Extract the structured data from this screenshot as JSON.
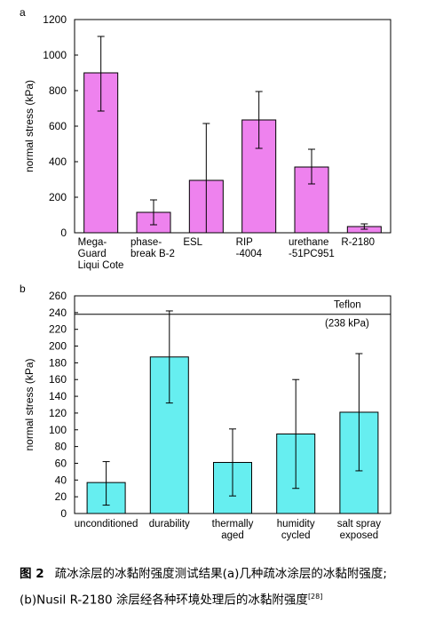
{
  "chart_data": [
    {
      "type": "bar",
      "panel_label": "a",
      "ylabel": "normal stress (kPa)",
      "ylim": [
        0,
        1200
      ],
      "yticks": [
        0,
        200,
        400,
        600,
        800,
        1000,
        1200
      ],
      "bar_color": "#ee82ee",
      "categories": [
        [
          "Mega-",
          "Guard",
          "Liqui Cote"
        ],
        [
          "phase-",
          "break B-2"
        ],
        [
          "ESL"
        ],
        [
          "RIP",
          "-4004"
        ],
        [
          "urethane",
          "-51PC951"
        ],
        [
          "R-2180"
        ]
      ],
      "values": [
        900,
        115,
        295,
        635,
        370,
        35
      ],
      "error_low": [
        685,
        45,
        -30,
        475,
        275,
        20
      ],
      "error_high": [
        1105,
        185,
        615,
        795,
        470,
        50
      ],
      "grid": false
    },
    {
      "type": "bar",
      "panel_label": "b",
      "ylabel": "normal stress (kPa)",
      "ylim": [
        0,
        260
      ],
      "yticks": [
        0,
        20,
        40,
        60,
        80,
        100,
        120,
        140,
        160,
        180,
        200,
        220,
        240,
        260
      ],
      "bar_color": "#66eef0",
      "categories": [
        [
          "unconditioned"
        ],
        [
          "durability"
        ],
        [
          "thermally",
          "aged"
        ],
        [
          "humidity",
          "cycled"
        ],
        [
          "salt spray",
          "exposed"
        ]
      ],
      "values": [
        37,
        187,
        61,
        95,
        121
      ],
      "error_low": [
        10,
        132,
        21,
        30,
        51
      ],
      "error_high": [
        62,
        242,
        101,
        160,
        191
      ],
      "reference_line": {
        "value": 238,
        "label": "Teflon",
        "sublabel": "(238 kPa)"
      },
      "grid": false
    }
  ],
  "caption": {
    "label": "图 2",
    "text": "疏冰涂层的冰黏附强度测试结果(a)几种疏冰涂层的冰黏附强度;(b)Nusil R-2180 涂层经各种环境处理后的冰黏附强度",
    "ref": "[28]"
  }
}
